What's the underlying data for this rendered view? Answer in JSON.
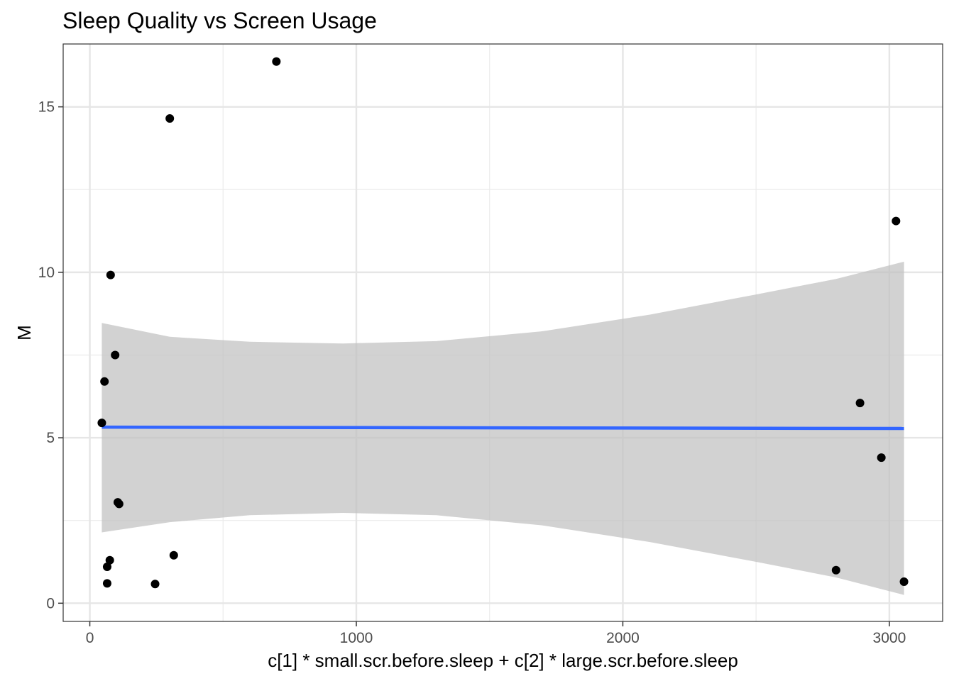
{
  "chart_data": {
    "type": "scatter",
    "title": "Sleep Quality vs Screen Usage",
    "xlabel": "c[1] * small.scr.before.sleep + c[2] * large.scr.before.sleep",
    "ylabel": "M",
    "xlim": [
      -100,
      3200
    ],
    "ylim": [
      -0.55,
      16.9
    ],
    "x_ticks": [
      0,
      1000,
      2000,
      3000
    ],
    "y_ticks": [
      0,
      5,
      10,
      15
    ],
    "x_minor": [
      500,
      1500,
      2500
    ],
    "y_minor": [
      2.5,
      7.5,
      12.5
    ],
    "grid": true,
    "theme": "bw",
    "point_color": "#000000",
    "points": [
      {
        "x": 45,
        "y": 5.45
      },
      {
        "x": 55,
        "y": 6.7
      },
      {
        "x": 65,
        "y": 1.1
      },
      {
        "x": 65,
        "y": 0.6
      },
      {
        "x": 75,
        "y": 1.3
      },
      {
        "x": 78,
        "y": 9.92
      },
      {
        "x": 95,
        "y": 7.5
      },
      {
        "x": 105,
        "y": 3.05
      },
      {
        "x": 110,
        "y": 3.0
      },
      {
        "x": 245,
        "y": 0.58
      },
      {
        "x": 300,
        "y": 14.65
      },
      {
        "x": 315,
        "y": 1.45
      },
      {
        "x": 700,
        "y": 16.37
      },
      {
        "x": 2800,
        "y": 1.0
      },
      {
        "x": 2890,
        "y": 6.05
      },
      {
        "x": 2970,
        "y": 4.4
      },
      {
        "x": 3025,
        "y": 11.55
      },
      {
        "x": 3055,
        "y": 0.65
      }
    ],
    "smooth": {
      "method": "lm",
      "color": "#3366ff",
      "ribbon_color": "#bfbfbf",
      "line": [
        [
          45,
          5.32
        ],
        [
          3055,
          5.28
        ]
      ],
      "ribbon": [
        {
          "x": 45,
          "lower": 2.14,
          "upper": 8.47
        },
        {
          "x": 300,
          "lower": 2.45,
          "upper": 8.05
        },
        {
          "x": 600,
          "lower": 2.66,
          "upper": 7.9
        },
        {
          "x": 950,
          "lower": 2.73,
          "upper": 7.85
        },
        {
          "x": 1300,
          "lower": 2.66,
          "upper": 7.92
        },
        {
          "x": 1700,
          "lower": 2.35,
          "upper": 8.22
        },
        {
          "x": 2100,
          "lower": 1.85,
          "upper": 8.72
        },
        {
          "x": 2500,
          "lower": 1.25,
          "upper": 9.33
        },
        {
          "x": 2800,
          "lower": 0.78,
          "upper": 9.8
        },
        {
          "x": 3055,
          "lower": 0.25,
          "upper": 10.32
        }
      ]
    }
  }
}
